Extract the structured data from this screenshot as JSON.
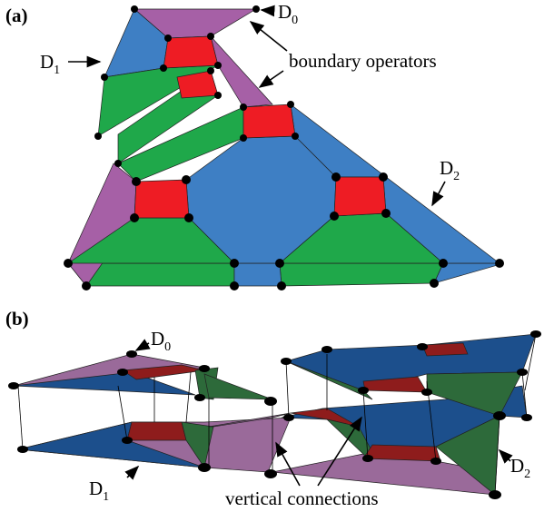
{
  "panel_a": {
    "label": "(a)",
    "labels": [
      {
        "text": "D",
        "sub": "0"
      },
      {
        "text": "D",
        "sub": "1"
      },
      {
        "text": "D",
        "sub": "2"
      }
    ],
    "annotation": "boundary operators"
  },
  "panel_b": {
    "label": "(b)",
    "labels": [
      {
        "text": "D",
        "sub": "0"
      },
      {
        "text": "D",
        "sub": "1"
      },
      {
        "text": "D",
        "sub": "2"
      }
    ],
    "annotation": "vertical connections"
  }
}
